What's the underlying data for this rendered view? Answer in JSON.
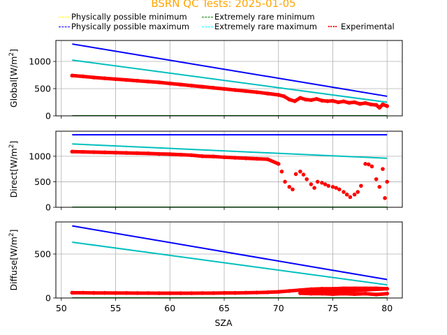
{
  "title": "BSRN QC Tests: 2025-01-05",
  "legend": [
    {
      "label": "Physically possible minimum",
      "color": "#ffff00",
      "style": "dashed"
    },
    {
      "label": "Extremely rare minimum",
      "color": "#008000",
      "style": "dashed"
    },
    {
      "label": "Physically possible maximum",
      "color": "#0000ff",
      "style": "dashed"
    },
    {
      "label": "Extremely rare maximum",
      "color": "#00ffff",
      "style": "dashed"
    },
    {
      "label": "Experimental",
      "color": "#ff0000",
      "style": "dotted"
    }
  ],
  "chart_data": [
    {
      "type": "line",
      "title": "BSRN QC Tests: 2025-01-05",
      "xlabel": "",
      "ylabel": "Global[W/m²]",
      "ylabel_base": "Global[W/m",
      "ylabel_sup": "2",
      "ylabel_end": "]",
      "xlim": [
        49.5,
        81.4
      ],
      "ylim": [
        0,
        1385
      ],
      "yticks": [
        0,
        500,
        1000
      ],
      "xticks": [
        50,
        55,
        60,
        65,
        70,
        75,
        80
      ],
      "grid": true,
      "series": [
        {
          "name": "Physically possible minimum",
          "color": "#ffff00",
          "x": [
            51,
            80
          ],
          "y": [
            -4,
            -4
          ]
        },
        {
          "name": "Extremely rare minimum",
          "color": "#008000",
          "x": [
            51,
            80
          ],
          "y": [
            0,
            0
          ]
        },
        {
          "name": "Physically possible maximum",
          "color": "#0000ff",
          "x": [
            51,
            80
          ],
          "y": [
            1320,
            360
          ]
        },
        {
          "name": "Extremely rare maximum",
          "color": "#00bfbf",
          "x": [
            51,
            80
          ],
          "y": [
            1025,
            250
          ]
        },
        {
          "name": "Experimental",
          "color": "#ff0000",
          "type": "scatter",
          "x": [
            51,
            52,
            53,
            54,
            55,
            56,
            57,
            58,
            59,
            60,
            61,
            62,
            63,
            64,
            65,
            66,
            67,
            68,
            69,
            70,
            70.5,
            71,
            71.5,
            72,
            72.5,
            73,
            73.5,
            74,
            74.5,
            75,
            75.5,
            76,
            76.5,
            77,
            77.5,
            78,
            78.5,
            79,
            79.3,
            79.6,
            80
          ],
          "y": [
            740,
            725,
            705,
            690,
            675,
            660,
            645,
            630,
            615,
            595,
            575,
            555,
            535,
            515,
            495,
            475,
            455,
            435,
            410,
            385,
            360,
            300,
            270,
            330,
            300,
            290,
            310,
            280,
            270,
            275,
            250,
            265,
            240,
            250,
            220,
            235,
            210,
            200,
            150,
            210,
            180
          ]
        }
      ]
    },
    {
      "type": "line",
      "xlabel": "",
      "ylabel": "Direct[W/m²]",
      "ylabel_base": "Direct[W/m",
      "ylabel_sup": "2",
      "ylabel_end": "]",
      "xlim": [
        49.5,
        81.4
      ],
      "ylim": [
        0,
        1490
      ],
      "yticks": [
        0,
        500,
        1000
      ],
      "xticks": [
        50,
        55,
        60,
        65,
        70,
        75,
        80
      ],
      "grid": true,
      "series": [
        {
          "name": "Physically possible minimum",
          "color": "#ffff00",
          "x": [
            51,
            80
          ],
          "y": [
            -4,
            -4
          ]
        },
        {
          "name": "Extremely rare minimum",
          "color": "#008000",
          "x": [
            51,
            80
          ],
          "y": [
            0,
            0
          ]
        },
        {
          "name": "Physically possible maximum",
          "color": "#0000ff",
          "x": [
            51,
            80
          ],
          "y": [
            1420,
            1420
          ]
        },
        {
          "name": "Extremely rare maximum",
          "color": "#00bfbf",
          "x": [
            51,
            80
          ],
          "y": [
            1240,
            960
          ]
        },
        {
          "name": "Experimental",
          "color": "#ff0000",
          "type": "scatter",
          "x": [
            51,
            52,
            53,
            54,
            55,
            56,
            57,
            58,
            59,
            60,
            61,
            62,
            63,
            64,
            65,
            66,
            67,
            68,
            69,
            70,
            70.3,
            70.6,
            71,
            71.3,
            71.6,
            72,
            72.3,
            72.6,
            73,
            73.3,
            73.6,
            74,
            74.3,
            74.6,
            75,
            75.3,
            75.6,
            76,
            76.3,
            76.6,
            77,
            77.3,
            77.6,
            78,
            78.3,
            78.6,
            79,
            79.3,
            79.6,
            79.8,
            80
          ],
          "y": [
            1090,
            1085,
            1080,
            1075,
            1070,
            1065,
            1060,
            1055,
            1045,
            1040,
            1030,
            1020,
            1000,
            995,
            980,
            970,
            960,
            950,
            940,
            850,
            700,
            500,
            400,
            350,
            650,
            700,
            640,
            550,
            450,
            380,
            500,
            480,
            450,
            420,
            400,
            380,
            350,
            300,
            250,
            200,
            250,
            300,
            420,
            850,
            840,
            800,
            550,
            400,
            750,
            180,
            500
          ]
        }
      ]
    },
    {
      "type": "line",
      "xlabel": "SZA",
      "ylabel": "Diffuse[W/m²]",
      "ylabel_base": "Diffuse[W/m",
      "ylabel_sup": "2",
      "ylabel_end": "]",
      "xlim": [
        49.5,
        81.4
      ],
      "ylim": [
        0,
        865
      ],
      "yticks": [
        0,
        500
      ],
      "xticks": [
        50,
        55,
        60,
        65,
        70,
        75,
        80
      ],
      "xticklabels": [
        "50",
        "55",
        "60",
        "65",
        "70",
        "75",
        "80"
      ],
      "grid": true,
      "series": [
        {
          "name": "Physically possible minimum",
          "color": "#ffff00",
          "x": [
            51,
            80
          ],
          "y": [
            -4,
            -4
          ]
        },
        {
          "name": "Extremely rare minimum",
          "color": "#008000",
          "x": [
            51,
            80
          ],
          "y": [
            0,
            0
          ]
        },
        {
          "name": "Physically possible maximum",
          "color": "#0000ff",
          "x": [
            51,
            80
          ],
          "y": [
            820,
            210
          ]
        },
        {
          "name": "Extremely rare maximum",
          "color": "#00bfbf",
          "x": [
            51,
            80
          ],
          "y": [
            635,
            150
          ]
        },
        {
          "name": "Experimental",
          "color": "#ff0000",
          "type": "scatter",
          "x": [
            51,
            52,
            53,
            54,
            55,
            56,
            57,
            58,
            59,
            60,
            61,
            62,
            63,
            64,
            65,
            66,
            67,
            68,
            69,
            70,
            71,
            72,
            73,
            74,
            75,
            76,
            77,
            78,
            79,
            80,
            72,
            73,
            74,
            75,
            76,
            77,
            78,
            79,
            80
          ],
          "y": [
            60,
            60,
            58,
            58,
            57,
            57,
            56,
            56,
            55,
            55,
            55,
            55,
            56,
            56,
            58,
            58,
            60,
            62,
            65,
            70,
            80,
            90,
            100,
            105,
            105,
            110,
            110,
            110,
            110,
            105,
            55,
            50,
            50,
            45,
            50,
            45,
            50,
            40,
            50
          ]
        }
      ]
    }
  ]
}
